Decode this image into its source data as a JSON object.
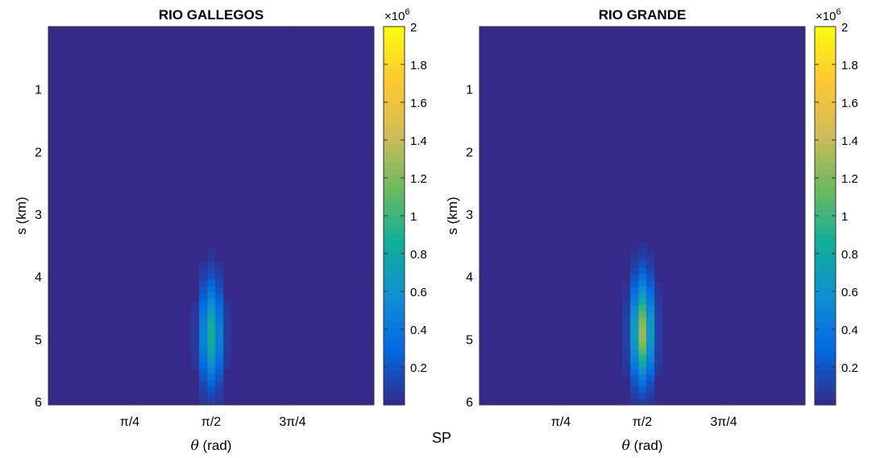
{
  "figure_label": "SP",
  "colors": {
    "colormap": [
      "#352a87",
      "#0268e1",
      "#108ed2",
      "#0fae99",
      "#6cba5f",
      "#d1bb59",
      "#fec832",
      "#f9fb0e"
    ],
    "axis": "#333333"
  },
  "chart_data": [
    {
      "type": "heatmap",
      "title": "RIO GALLEGOS",
      "xlabel_symbol": "θ",
      "xlabel_unit": " (rad)",
      "ylabel": "s (km)",
      "xlim": [
        0,
        3.1416
      ],
      "ylim": [
        0,
        6.05
      ],
      "y_reversed": true,
      "xticks": [
        {
          "value": 0.7854,
          "label": "π/4"
        },
        {
          "value": 1.5708,
          "label": "π/2"
        },
        {
          "value": 2.3562,
          "label": "3π/4"
        }
      ],
      "yticks": [
        {
          "value": 1,
          "label": "1"
        },
        {
          "value": 2,
          "label": "2"
        },
        {
          "value": 3,
          "label": "3"
        },
        {
          "value": 4,
          "label": "4"
        },
        {
          "value": 5,
          "label": "5"
        },
        {
          "value": 6,
          "label": "6"
        }
      ],
      "colorbar": {
        "min": 0,
        "max": 2000000,
        "multiplier": "×10",
        "exponent": "6",
        "ticks": [
          {
            "value": 0.2,
            "label": "0.2"
          },
          {
            "value": 0.4,
            "label": "0.4"
          },
          {
            "value": 0.6,
            "label": "0.6"
          },
          {
            "value": 0.8,
            "label": "0.8"
          },
          {
            "value": 1.0,
            "label": "1"
          },
          {
            "value": 1.2,
            "label": "1.2"
          },
          {
            "value": 1.4,
            "label": "1.4"
          },
          {
            "value": 1.6,
            "label": "1.6"
          },
          {
            "value": 1.8,
            "label": "1.8"
          },
          {
            "value": 2.0,
            "label": "2"
          }
        ]
      },
      "hotspot": {
        "theta_center": 1.5708,
        "s_center": 4.95,
        "peak": 870000,
        "s_start": 3.55,
        "s_end": 6.05,
        "theta_half_width": 0.236
      }
    },
    {
      "type": "heatmap",
      "title": "RIO GRANDE",
      "xlabel_symbol": "θ",
      "xlabel_unit": " (rad)",
      "ylabel": "s (km)",
      "xlim": [
        0,
        3.1416
      ],
      "ylim": [
        0,
        6.05
      ],
      "y_reversed": true,
      "xticks": [
        {
          "value": 0.7854,
          "label": "π/4"
        },
        {
          "value": 1.5708,
          "label": "π/2"
        },
        {
          "value": 2.3562,
          "label": "3π/4"
        }
      ],
      "yticks": [
        {
          "value": 1,
          "label": "1"
        },
        {
          "value": 2,
          "label": "2"
        },
        {
          "value": 3,
          "label": "3"
        },
        {
          "value": 4,
          "label": "4"
        },
        {
          "value": 5,
          "label": "5"
        },
        {
          "value": 6,
          "label": "6"
        }
      ],
      "colorbar": {
        "min": 0,
        "max": 2000000,
        "multiplier": "×10",
        "exponent": "6",
        "ticks": [
          {
            "value": 0.2,
            "label": "0.2"
          },
          {
            "value": 0.4,
            "label": "0.4"
          },
          {
            "value": 0.6,
            "label": "0.6"
          },
          {
            "value": 0.8,
            "label": "0.8"
          },
          {
            "value": 1.0,
            "label": "1"
          },
          {
            "value": 1.2,
            "label": "1.2"
          },
          {
            "value": 1.4,
            "label": "1.4"
          },
          {
            "value": 1.6,
            "label": "1.6"
          },
          {
            "value": 1.8,
            "label": "1.8"
          },
          {
            "value": 2.0,
            "label": "2"
          }
        ]
      },
      "hotspot": {
        "theta_center": 1.5708,
        "s_center": 4.9,
        "peak": 1250000,
        "s_start": 3.45,
        "s_end": 6.05,
        "theta_half_width": 0.236
      }
    }
  ]
}
